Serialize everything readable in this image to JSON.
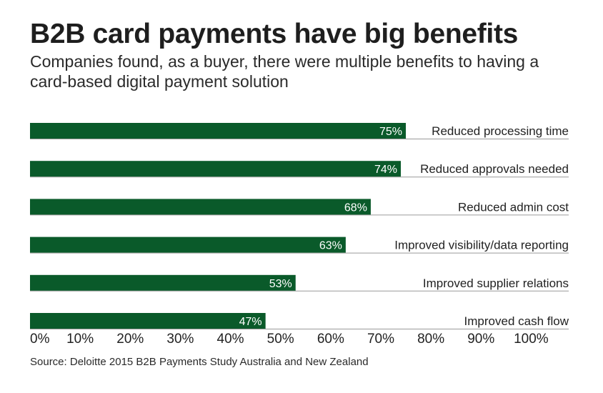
{
  "title": "B2B card payments have big benefits",
  "subtitle": "Companies found, as a buyer, there were multiple benefits to having a card-based digital payment solution",
  "source": "Source: Deloitte 2015 B2B Payments Study Australia and New Zealand",
  "colors": {
    "bar": "#0a5a2a",
    "bar_label": "#ffffff",
    "text": "#222222",
    "rule": "#9a9a9a"
  },
  "chart_data": {
    "type": "bar",
    "orientation": "horizontal",
    "categories": [
      "Reduced processing time",
      "Reduced approvals needed",
      "Reduced admin cost",
      "Improved visibility/data reporting",
      "Improved supplier relations",
      "Improved cash flow"
    ],
    "values": [
      75,
      74,
      68,
      63,
      53,
      47
    ],
    "value_labels": [
      "75%",
      "74%",
      "68%",
      "63%",
      "53%",
      "47%"
    ],
    "xlim": [
      0,
      100
    ],
    "xticks": [
      "0%",
      "10%",
      "20%",
      "30%",
      "40%",
      "50%",
      "60%",
      "70%",
      "80%",
      "90%",
      "100%"
    ],
    "grid": false,
    "legend": "none"
  }
}
